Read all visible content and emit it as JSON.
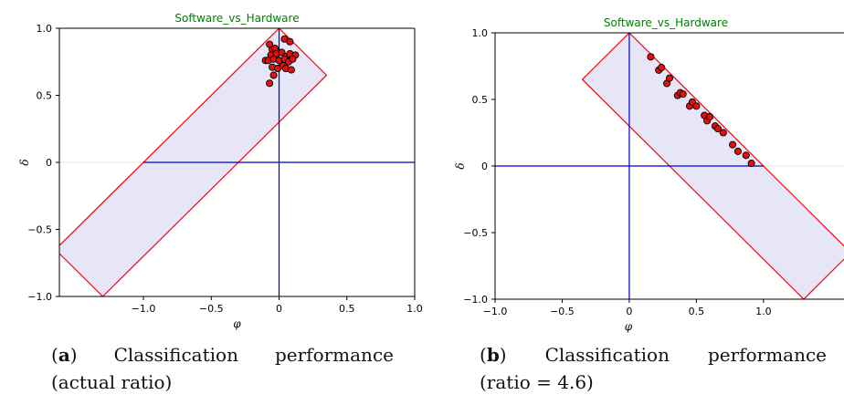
{
  "chart_data": [
    {
      "id": "a",
      "type": "scatter",
      "title": "Software_vs_Hardware",
      "xlabel": "φ",
      "ylabel": "δ",
      "xlim": [
        -1.62,
        1.0
      ],
      "ylim": [
        -1.0,
        1.0
      ],
      "xticks": [
        -1.0,
        -0.5,
        0,
        0.5,
        1.0
      ],
      "xtick_labels": [
        "−1.0",
        "−0.5",
        "0",
        "0.5",
        "1.0"
      ],
      "yticks": [
        -1.0,
        -0.5,
        0,
        0.5,
        1.0
      ],
      "ytick_labels": [
        "−1.0",
        "−0.5",
        "0",
        "0.5",
        "1.0"
      ],
      "axis_lines": {
        "h_from": -1.0,
        "h_to": 1.0,
        "v_from": -1.0,
        "v_to": 1.0
      },
      "region_polygon": [
        [
          0,
          1.0
        ],
        [
          0.35,
          0.65
        ],
        [
          -1.3,
          -1.0
        ],
        [
          -1.65,
          -0.65
        ]
      ],
      "points": [
        [
          -0.07,
          0.88
        ],
        [
          -0.05,
          0.84
        ],
        [
          -0.03,
          0.85
        ],
        [
          0.04,
          0.92
        ],
        [
          0.08,
          0.9
        ],
        [
          -0.06,
          0.8
        ],
        [
          -0.02,
          0.81
        ],
        [
          0.02,
          0.82
        ],
        [
          0.05,
          0.79
        ],
        [
          0.08,
          0.81
        ],
        [
          0.12,
          0.8
        ],
        [
          -0.1,
          0.76
        ],
        [
          -0.08,
          0.76
        ],
        [
          -0.04,
          0.77
        ],
        [
          0.0,
          0.76
        ],
        [
          0.04,
          0.77
        ],
        [
          0.07,
          0.75
        ],
        [
          0.1,
          0.77
        ],
        [
          -0.05,
          0.71
        ],
        [
          -0.01,
          0.7
        ],
        [
          0.03,
          0.72
        ],
        [
          0.05,
          0.7
        ],
        [
          0.09,
          0.69
        ],
        [
          -0.04,
          0.65
        ],
        [
          -0.07,
          0.59
        ]
      ],
      "colors": {
        "point": "#e01010",
        "region": "#e6e6f8",
        "region_edge": "#ff0000",
        "axes": "#0000cc",
        "title": "#008000"
      }
    },
    {
      "id": "b",
      "type": "scatter",
      "title": "Software_vs_Hardware",
      "xlabel": "φ",
      "ylabel": "δ",
      "xlim": [
        -1.0,
        1.6
      ],
      "ylim": [
        -1.0,
        1.0
      ],
      "xticks": [
        -1.0,
        -0.5,
        0,
        0.5,
        1.0
      ],
      "xtick_labels": [
        "−1.0",
        "−0.5",
        "0",
        "0.5",
        "1.0"
      ],
      "yticks": [
        -1.0,
        -0.5,
        0,
        0.5,
        1.0
      ],
      "ytick_labels": [
        "−1.0",
        "−0.5",
        "0",
        "0.5",
        "1.0"
      ],
      "axis_lines": {
        "h_from": -1.0,
        "h_to": 1.0,
        "v_from": -1.0,
        "v_to": 1.0
      },
      "region_polygon": [
        [
          0,
          1.0
        ],
        [
          -0.35,
          0.65
        ],
        [
          1.3,
          -1.0
        ],
        [
          1.65,
          -0.65
        ]
      ],
      "points": [
        [
          0.16,
          0.82
        ],
        [
          0.22,
          0.72
        ],
        [
          0.24,
          0.74
        ],
        [
          0.28,
          0.62
        ],
        [
          0.3,
          0.66
        ],
        [
          0.36,
          0.53
        ],
        [
          0.38,
          0.55
        ],
        [
          0.4,
          0.54
        ],
        [
          0.45,
          0.45
        ],
        [
          0.47,
          0.48
        ],
        [
          0.5,
          0.45
        ],
        [
          0.56,
          0.38
        ],
        [
          0.58,
          0.34
        ],
        [
          0.6,
          0.37
        ],
        [
          0.64,
          0.3
        ],
        [
          0.66,
          0.28
        ],
        [
          0.7,
          0.25
        ],
        [
          0.77,
          0.16
        ],
        [
          0.81,
          0.11
        ],
        [
          0.87,
          0.08
        ],
        [
          0.91,
          0.02
        ]
      ],
      "colors": {
        "point": "#e01010",
        "region": "#e6e6f8",
        "region_edge": "#ff0000",
        "axes": "#0000cc",
        "title": "#008000"
      }
    }
  ],
  "captions": {
    "a": {
      "label": "a",
      "line1_word1": "Classification",
      "line1_word2": "performance",
      "line2": "(actual ratio)"
    },
    "b": {
      "label": "b",
      "line1_word1": "Classification",
      "line1_word2": "performance",
      "line2": "(ratio = 4.6)"
    }
  }
}
